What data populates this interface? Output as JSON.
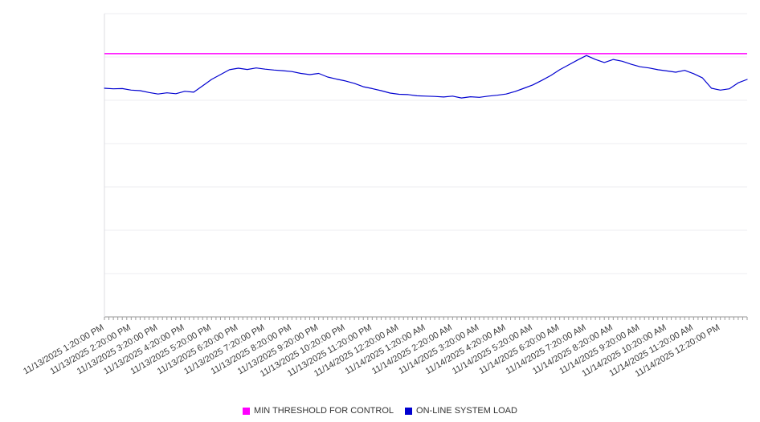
{
  "legend": [
    {
      "label": "MIN THRESHOLD FOR CONTROL",
      "color": "#ff00ff"
    },
    {
      "label": "ON-LINE SYSTEM LOAD",
      "color": "#0000d0"
    }
  ],
  "chart_data": {
    "type": "line",
    "title": "",
    "xlabel": "",
    "ylabel": "",
    "ylim": [
      0,
      100
    ],
    "y_axis_labels_visible": false,
    "y_gridline_count": 8,
    "grid": true,
    "legend_position": "bottom",
    "x_total_hours": 24,
    "x_minor_ticks_per_hour": 6,
    "x_labels": [
      "11/13/2025 1:20:00 PM",
      "11/13/2025 2:20:00 PM",
      "11/13/2025 3:20:00 PM",
      "11/13/2025 4:20:00 PM",
      "11/13/2025 5:20:00 PM",
      "11/13/2025 6:20:00 PM",
      "11/13/2025 7:20:00 PM",
      "11/13/2025 8:20:00 PM",
      "11/13/2025 9:20:00 PM",
      "11/13/2025 10:20:00 PM",
      "11/13/2025 11:20:00 PM",
      "11/14/2025 12:20:00 AM",
      "11/14/2025 1:20:00 AM",
      "11/14/2025 2:20:00 AM",
      "11/14/2025 3:20:00 AM",
      "11/14/2025 4:20:00 AM",
      "11/14/2025 5:20:00 AM",
      "11/14/2025 6:20:00 AM",
      "11/14/2025 7:20:00 AM",
      "11/14/2025 8:20:00 AM",
      "11/14/2025 9:20:00 AM",
      "11/14/2025 10:20:00 AM",
      "11/14/2025 11:20:00 AM",
      "11/14/2025 12:20:00 PM"
    ],
    "series": [
      {
        "name": "MIN THRESHOLD FOR CONTROL",
        "style": "threshold",
        "color": "#ff00ff",
        "value": 86.8
      },
      {
        "name": "ON-LINE SYSTEM LOAD",
        "style": "line",
        "color": "#0000d0",
        "points_interval_minutes": 20,
        "values": [
          75.4,
          75.2,
          75.3,
          74.8,
          74.6,
          74.0,
          73.5,
          73.9,
          73.6,
          74.4,
          74.1,
          76.2,
          78.3,
          79.9,
          81.5,
          82.0,
          81.6,
          82.1,
          81.7,
          81.4,
          81.2,
          80.9,
          80.3,
          79.9,
          80.3,
          79.1,
          78.4,
          77.8,
          77.0,
          75.9,
          75.3,
          74.6,
          73.8,
          73.4,
          73.3,
          72.9,
          72.8,
          72.7,
          72.5,
          72.8,
          72.2,
          72.6,
          72.4,
          72.8,
          73.1,
          73.5,
          74.3,
          75.4,
          76.5,
          78.0,
          79.6,
          81.5,
          83.1,
          84.7,
          86.2,
          84.9,
          83.9,
          84.9,
          84.3,
          83.3,
          82.5,
          82.1,
          81.5,
          81.1,
          80.7,
          81.3,
          80.2,
          78.8,
          75.4,
          74.8,
          75.2,
          77.2,
          78.3
        ]
      }
    ]
  }
}
